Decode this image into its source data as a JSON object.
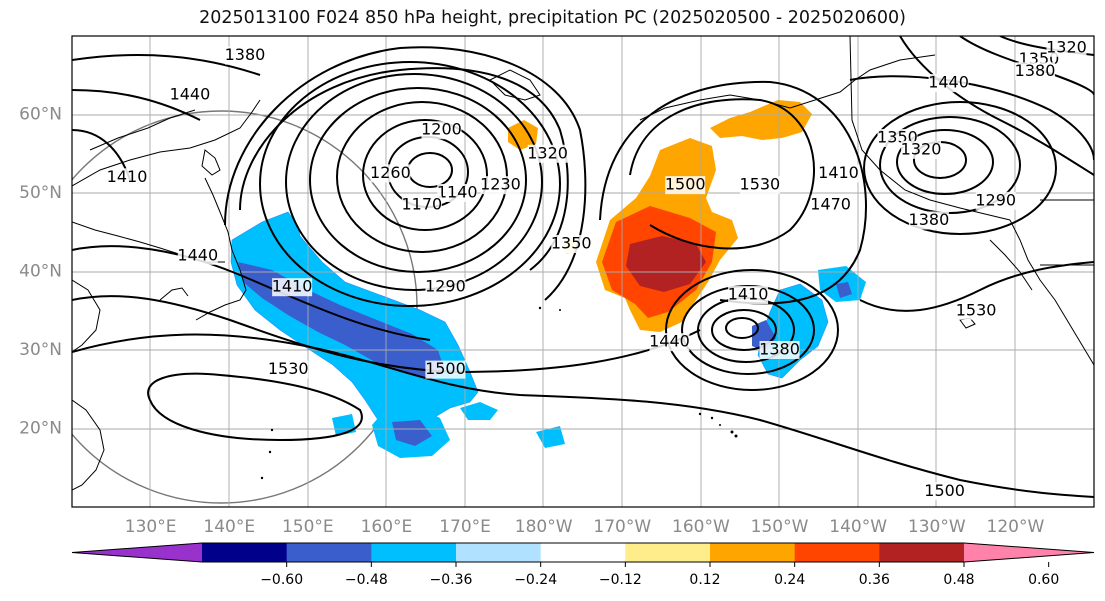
{
  "title": "2025013100 F024 850 hPa height, precipitation PC (2025020500 - 2025020600)",
  "lat_labels": [
    {
      "label": "60°N",
      "lat": 60
    },
    {
      "label": "50°N",
      "lat": 50
    },
    {
      "label": "40°N",
      "lat": 40
    },
    {
      "label": "30°N",
      "lat": 30
    },
    {
      "label": "20°N",
      "lat": 20
    }
  ],
  "lon_labels": [
    {
      "label": "130°E",
      "lon": 130
    },
    {
      "label": "140°E",
      "lon": 140
    },
    {
      "label": "150°E",
      "lon": 150
    },
    {
      "label": "160°E",
      "lon": 160
    },
    {
      "label": "170°E",
      "lon": 170
    },
    {
      "label": "180°W",
      "lon": 180
    },
    {
      "label": "170°W",
      "lon": 190
    },
    {
      "label": "160°W",
      "lon": 200
    },
    {
      "label": "150°W",
      "lon": 210
    },
    {
      "label": "140°W",
      "lon": 220
    },
    {
      "label": "130°W",
      "lon": 230
    },
    {
      "label": "120°W",
      "lon": 240
    }
  ],
  "contour_labels": [
    {
      "text": "1380",
      "lon": 142,
      "lat": 67.5
    },
    {
      "text": "1440",
      "lon": 135,
      "lat": 62.5
    },
    {
      "text": "1410",
      "lon": 127,
      "lat": 52
    },
    {
      "text": "1440",
      "lon": 136,
      "lat": 42
    },
    {
      "text": "1410",
      "lon": 148,
      "lat": 38
    },
    {
      "text": "1260",
      "lon": 160.5,
      "lat": 52.5
    },
    {
      "text": "1200",
      "lon": 167,
      "lat": 58
    },
    {
      "text": "1140",
      "lon": 169,
      "lat": 50
    },
    {
      "text": "1170",
      "lon": 164.5,
      "lat": 48.5
    },
    {
      "text": "1230",
      "lon": 174.5,
      "lat": 51
    },
    {
      "text": "1320",
      "lon": 180.5,
      "lat": 55
    },
    {
      "text": "1350",
      "lon": 183.5,
      "lat": 43.5
    },
    {
      "text": "1290",
      "lon": 167.5,
      "lat": 38
    },
    {
      "text": "1500",
      "lon": 167.5,
      "lat": 27.5
    },
    {
      "text": "1530",
      "lon": 147.5,
      "lat": 27.5
    },
    {
      "text": "1500",
      "lon": 198,
      "lat": 51
    },
    {
      "text": "1530",
      "lon": 207.5,
      "lat": 51
    },
    {
      "text": "1470",
      "lon": 216.5,
      "lat": 48.5
    },
    {
      "text": "1410",
      "lon": 217.5,
      "lat": 52.5
    },
    {
      "text": "1410",
      "lon": 206,
      "lat": 37
    },
    {
      "text": "1440",
      "lon": 196,
      "lat": 31
    },
    {
      "text": "1380",
      "lon": 210,
      "lat": 30
    },
    {
      "text": "1350",
      "lon": 225,
      "lat": 57
    },
    {
      "text": "1320",
      "lon": 228,
      "lat": 55.5
    },
    {
      "text": "1290",
      "lon": 237.5,
      "lat": 49
    },
    {
      "text": "1380",
      "lon": 229,
      "lat": 46.5
    },
    {
      "text": "1440",
      "lon": 231.5,
      "lat": 64
    },
    {
      "text": "1350",
      "lon": 243,
      "lat": 67
    },
    {
      "text": "1320",
      "lon": 246.5,
      "lat": 68.5
    },
    {
      "text": "1380",
      "lon": 242.5,
      "lat": 65.5
    },
    {
      "text": "1530",
      "lon": 235,
      "lat": 35
    },
    {
      "text": "1500",
      "lon": 231,
      "lat": 12
    }
  ],
  "colorbar": {
    "colors": [
      "#9932cc",
      "#00008b",
      "#3a5fcd",
      "#00bfff",
      "#b0e2ff",
      "#ffffff",
      "#ffec8b",
      "#ffa500",
      "#ff4500",
      "#b22222",
      "#ff82ab"
    ],
    "ticks": [
      "−0.60",
      "−0.48",
      "−0.36",
      "−0.24",
      "−0.12",
      "0.12",
      "0.24",
      "0.36",
      "0.48",
      "0.60"
    ]
  }
}
